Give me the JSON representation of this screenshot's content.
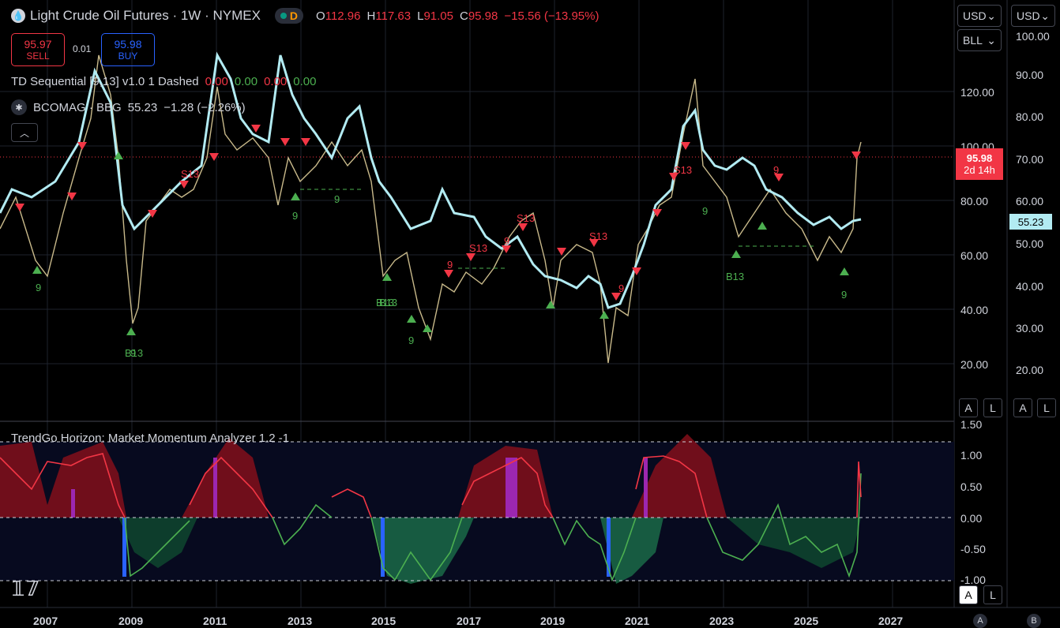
{
  "header": {
    "symbol_title": "Light Crude Oil Futures · 1W · NYMEX",
    "market_badge": "D",
    "ohlc": {
      "open_label": "O",
      "open": "112.96",
      "high_label": "H",
      "high": "117.63",
      "low_label": "L",
      "low": "91.05",
      "close_label": "C",
      "close": "95.98",
      "change": "−15.56 (−13.95%)"
    }
  },
  "trade": {
    "sell_price": "95.97",
    "sell_label": "SELL",
    "spread": "0.01",
    "buy_price": "95.98",
    "buy_label": "BUY"
  },
  "indicators": {
    "td_name": "TD Sequential [9,13] v1.0 1 Dashed",
    "td_values": [
      "0.00",
      "0.00",
      "0.00",
      "0.00"
    ],
    "bcomag_name": "BCOMAG · BBG",
    "bcomag_value": "55.23",
    "bcomag_change": "−1.28 (−2.26%)"
  },
  "price_axis": {
    "currency_left": "USD",
    "unit_left": "BLL",
    "currency_right": "USD",
    "left_ticks": [
      "120.00",
      "100.00",
      "80.00",
      "60.00",
      "40.00",
      "20.00"
    ],
    "right_ticks": [
      "100.00",
      "90.00",
      "80.00",
      "70.00",
      "60.00",
      "50.00",
      "40.00",
      "30.00",
      "20.00"
    ],
    "current_price": "95.98",
    "countdown": "2d 14h",
    "overlay_value": "55.23",
    "auto_label": "A",
    "log_label": "L"
  },
  "oscillator": {
    "title": "TrendGo Horizon: Market Momentum Analyzer 1.2 -1",
    "ticks": [
      "1.50",
      "1.00",
      "0.50",
      "0.00",
      "-0.50",
      "-1.00"
    ]
  },
  "time_axis": {
    "years": [
      "2007",
      "2009",
      "2011",
      "2013",
      "2015",
      "2017",
      "2019",
      "2021",
      "2023",
      "2025",
      "2027"
    ]
  },
  "td_labels": [
    "9",
    "9",
    "B13",
    "9",
    "S13",
    "9",
    "9",
    "S13",
    "B13",
    "9",
    "S13",
    "9",
    "S13",
    "9",
    "9",
    "S13",
    "9",
    "B13",
    "9",
    "B13"
  ],
  "footer": {
    "a_label": "A",
    "b_label": "B"
  },
  "colors": {
    "bearish": "#f23645",
    "bullish": "#4caf50",
    "overlay": "#b2ebf2",
    "price_line": "#c8b98a",
    "accent_blue": "#2962ff"
  }
}
